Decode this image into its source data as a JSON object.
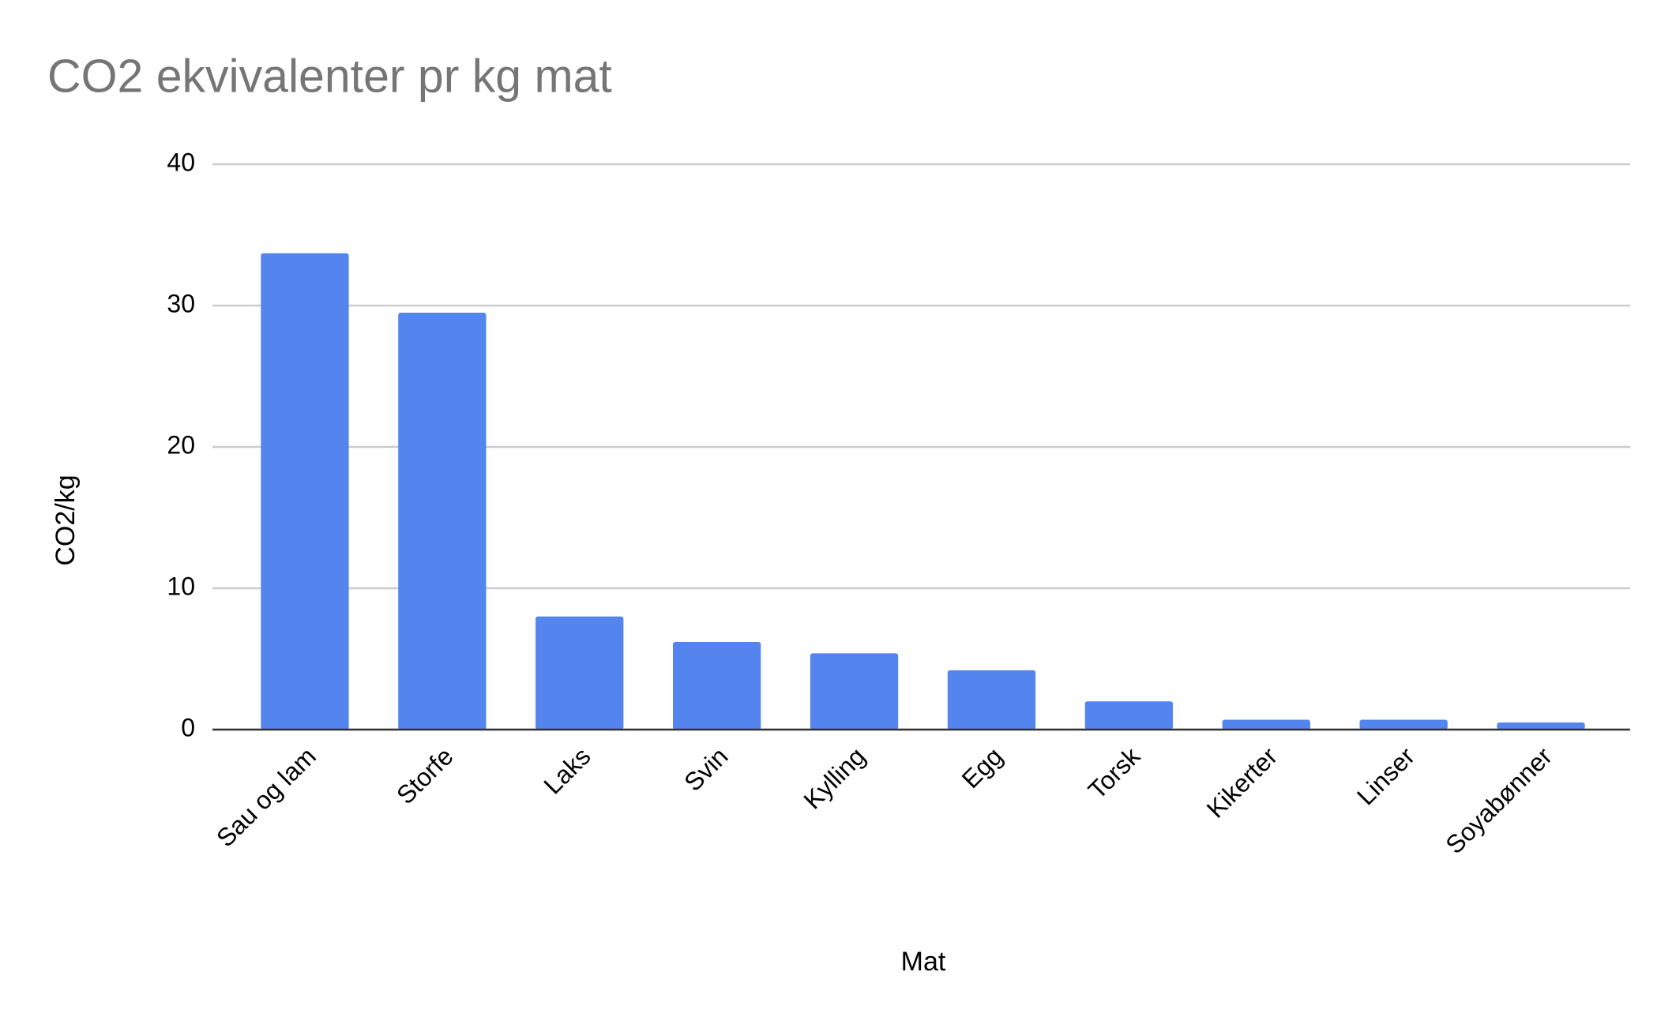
{
  "chart_data": {
    "type": "bar",
    "title": "CO2 ekvivalenter pr kg mat",
    "x_label": "Mat",
    "y_label": "CO2/kg",
    "categories": [
      "Sau og lam",
      "Storfe",
      "Laks",
      "Svin",
      "Kylling",
      "Egg",
      "Torsk",
      "Kikerter",
      "Linser",
      "Soyabønner"
    ],
    "values": [
      33.7,
      29.5,
      8.0,
      6.2,
      5.4,
      4.2,
      2.0,
      0.7,
      0.7,
      0.5
    ],
    "color": "#5484ed",
    "ylim": [
      0,
      40
    ],
    "yticks": [
      0,
      10,
      20,
      30,
      40
    ],
    "grid": true
  }
}
